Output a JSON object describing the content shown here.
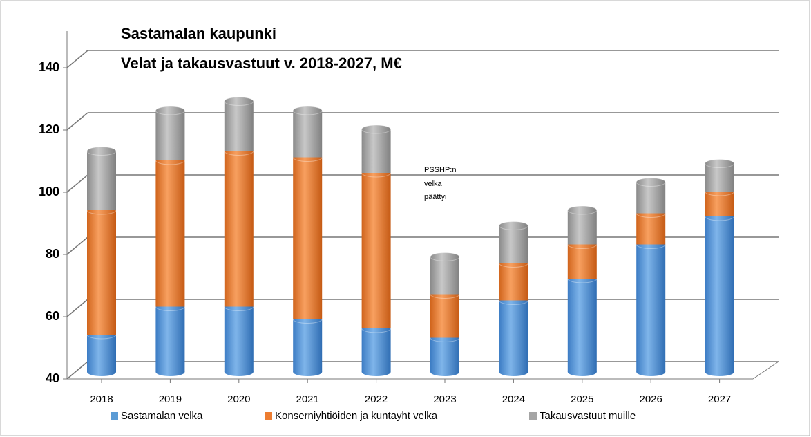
{
  "chart_data": {
    "type": "bar3d_stacked",
    "title": [
      "Sastamalan kaupunki",
      "Velat ja takausvastuut v. 2018-2027, M€"
    ],
    "annotation": [
      "PSSHP:n",
      "velka",
      "päättyi"
    ],
    "categories": [
      "2018",
      "2019",
      "2020",
      "2021",
      "2022",
      "2023",
      "2024",
      "2025",
      "2026",
      "2027"
    ],
    "series": [
      {
        "name": "Sastamalan velka",
        "color": "#5b9bd5",
        "values": [
          52,
          61,
          61,
          57,
          54,
          51,
          63,
          70,
          81,
          90
        ]
      },
      {
        "name": "Konserniyhtiöiden ja kuntayht  velka",
        "color": "#ed7d31",
        "values": [
          40,
          47,
          50,
          52,
          50,
          14,
          12,
          11,
          10,
          8
        ]
      },
      {
        "name": "Takausvastuut muille",
        "color": "#a5a5a5",
        "values": [
          19,
          16,
          16,
          15,
          14,
          12,
          12,
          11,
          10,
          9
        ]
      }
    ],
    "ylim": [
      40,
      140
    ],
    "yticks": [
      40,
      60,
      80,
      100,
      120,
      140
    ],
    "grid": true
  }
}
